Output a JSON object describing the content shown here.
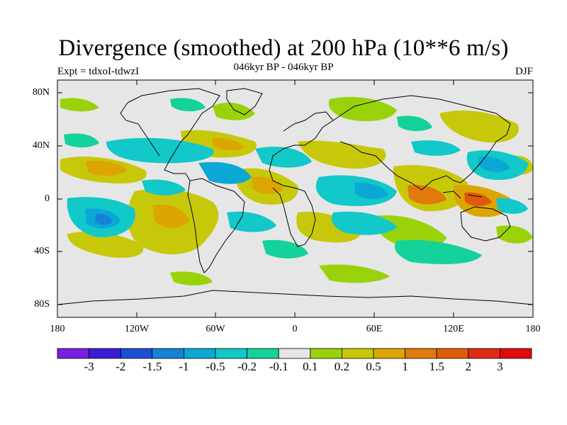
{
  "title": "Divergence (smoothed) at 200 hPa (10**6 m/s)",
  "subtitle": "046kyr BP - 046kyr BP",
  "left_label": "Expt = tdxoI-tdwzI",
  "right_label": "DJF",
  "lat_ticks": [
    "80N",
    "40N",
    "0",
    "40S",
    "80S"
  ],
  "lon_ticks": [
    "180",
    "120W",
    "60W",
    "0",
    "60E",
    "120E",
    "180"
  ],
  "colorbar": {
    "labels": [
      "-3",
      "-2",
      "-1.5",
      "-1",
      "-0.5",
      "-0.2",
      "-0.1",
      "0.1",
      "0.2",
      "0.5",
      "1",
      "1.5",
      "2",
      "3"
    ],
    "colors": [
      "#7a1ee0",
      "#3a1cd4",
      "#1b4fd6",
      "#1582d8",
      "#0ba8d6",
      "#12c8c8",
      "#14d29a",
      "#e6e6e6",
      "#9ad20a",
      "#c8c80a",
      "#dca602",
      "#e07a0a",
      "#e05a0c",
      "#e02a14",
      "#e00a0a"
    ]
  },
  "colors": {
    "ocean_background": "#e6e6e6",
    "coastline": "#000000"
  }
}
